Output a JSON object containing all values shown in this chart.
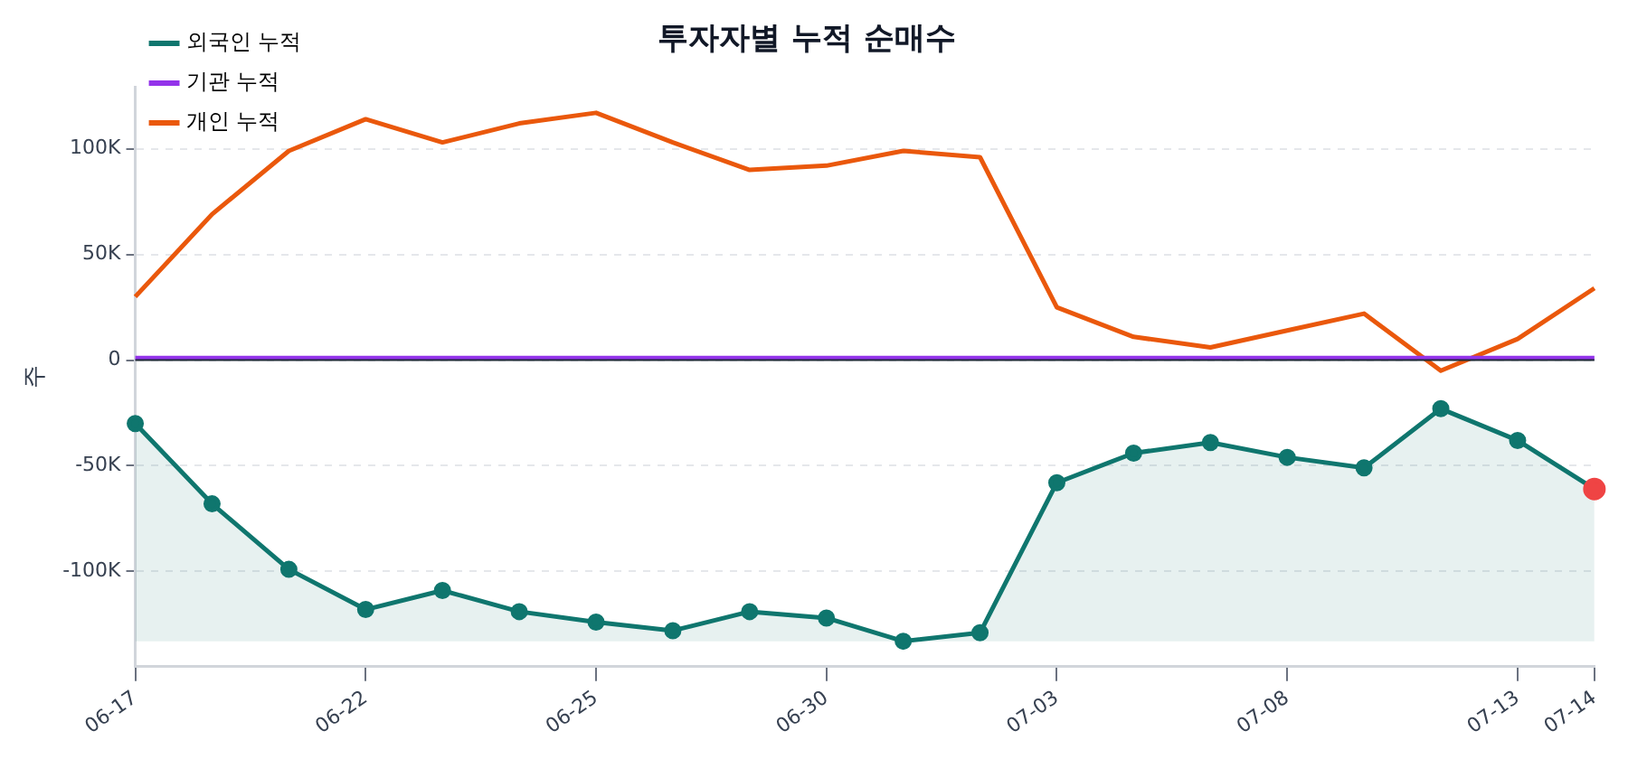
{
  "chart_data": {
    "type": "line",
    "title": "투자자별 누적 순매수",
    "ylabel": "주",
    "categories": [
      "06-17",
      null,
      null,
      "06-22",
      null,
      null,
      "06-25",
      null,
      null,
      "06-30",
      null,
      null,
      "07-03",
      null,
      null,
      "07-08",
      null,
      null,
      "07-13",
      "07-14"
    ],
    "series": [
      {
        "name": "외국인 누적",
        "type": "line",
        "lower": [
          -133000,
          -133000,
          -133000,
          -133000,
          -133000,
          -133000,
          -133000,
          -133000,
          -133000,
          -133000,
          -133000,
          -133000,
          -133000,
          -133000,
          -133000,
          -133000,
          -133000,
          -133000,
          -133000,
          -133000
        ],
        "upper": [
          -30000,
          -68000,
          -99000,
          -118000,
          -109000,
          -119000,
          -124000,
          -128000,
          -119000,
          -122000,
          -133000,
          -129000,
          -58000,
          -44000,
          -39000,
          -46000,
          -51000,
          -23000,
          -38000,
          -61000
        ],
        "color": "#0f766e",
        "marker": "circle",
        "colors": [
          "#0f766e",
          "#0f766e",
          "#0f766e",
          "#0f766e",
          "#0f766e",
          "#0f766e",
          "#0f766e",
          "#0f766e",
          "#0f766e",
          "#0f766e",
          "#0f766e",
          "#0f766e",
          "#0f766e",
          "#0f766e",
          "#0f766e",
          "#0f766e",
          "#0f766e",
          "#0f766e",
          "#0f766e",
          "#ef4444"
        ],
        "values": [
          -30000,
          -68000,
          -99000,
          -118000,
          -109000,
          -119000,
          -124000,
          -128000,
          -119000,
          -122000,
          -133000,
          -129000,
          -58000,
          -44000,
          -39000,
          -46000,
          -51000,
          -23000,
          -38000,
          -61000
        ]
      },
      {
        "name": "기관 누적",
        "type": "line",
        "color": "#9333ea",
        "values": [
          1000,
          1000,
          1000,
          1000,
          1000,
          1000,
          1000,
          1000,
          1000,
          1000,
          1000,
          1000,
          1000,
          1000,
          1000,
          1000,
          1000,
          1000,
          1000,
          1000
        ]
      },
      {
        "name": "개인 누적",
        "type": "line",
        "color": "#ea580c",
        "values": [
          30000,
          69000,
          99000,
          114000,
          103000,
          112000,
          117000,
          103000,
          90000,
          92000,
          99000,
          96000,
          25000,
          11000,
          6000,
          14000,
          22000,
          -5000,
          10000,
          34000
        ]
      }
    ],
    "ylim": [
      -145000,
      129000
    ],
    "yticks": [
      {
        "value": -100000,
        "label": "-100K"
      },
      {
        "value": -50000,
        "label": "-50K"
      },
      {
        "value": 0,
        "label": "0"
      },
      {
        "value": 50000,
        "label": "50K"
      },
      {
        "value": 100000,
        "label": "100K"
      }
    ],
    "ref_lines": [
      {
        "axis": "y",
        "value": 0,
        "color": "#1f2937"
      }
    ],
    "grid": "y",
    "legend": "top left",
    "line_style": "solid"
  }
}
